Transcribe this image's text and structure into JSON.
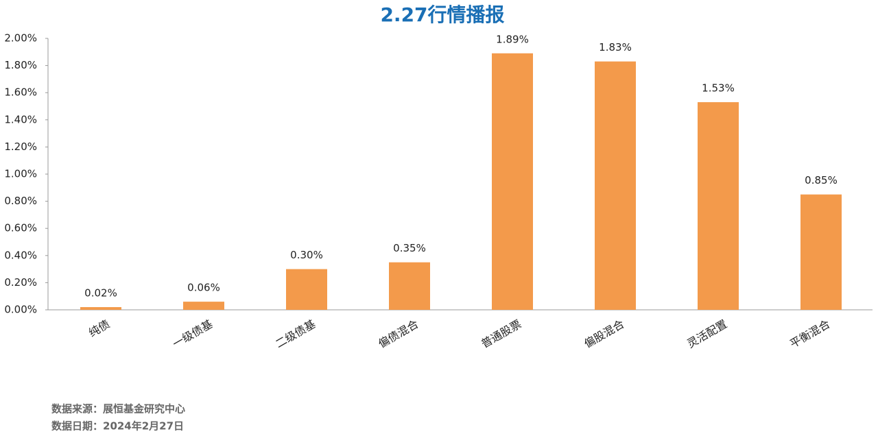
{
  "chart_data": {
    "type": "bar",
    "title": "2.27行情播报",
    "categories": [
      "纯债",
      "一级债基",
      "二级债基",
      "偏债混合",
      "普通股票",
      "偏股混合",
      "灵活配置",
      "平衡混合"
    ],
    "values": [
      0.02,
      0.06,
      0.3,
      0.35,
      1.89,
      1.83,
      1.53,
      0.85
    ],
    "value_labels": [
      "0.02%",
      "0.06%",
      "0.30%",
      "0.35%",
      "1.89%",
      "1.83%",
      "1.53%",
      "0.85%"
    ],
    "color": "#f39a4b",
    "ylim": [
      0,
      2
    ],
    "yticks": [
      {
        "value": 0,
        "label": "0.00%"
      },
      {
        "value": 0.2,
        "label": "0.20%"
      },
      {
        "value": 0.4,
        "label": "0.40%"
      },
      {
        "value": 0.6,
        "label": "0.60%"
      },
      {
        "value": 0.8,
        "label": "0.80%"
      },
      {
        "value": 1,
        "label": "1.00%"
      },
      {
        "value": 1.2,
        "label": "1.20%"
      },
      {
        "value": 1.4,
        "label": "1.40%"
      },
      {
        "value": 1.6,
        "label": "1.60%"
      },
      {
        "value": 1.8,
        "label": "1.80%"
      },
      {
        "value": 2,
        "label": "2.00%"
      }
    ],
    "grid": false,
    "source": "数据来源：展恒基金研究中心",
    "date": "数据日期：2024年2月27日"
  }
}
